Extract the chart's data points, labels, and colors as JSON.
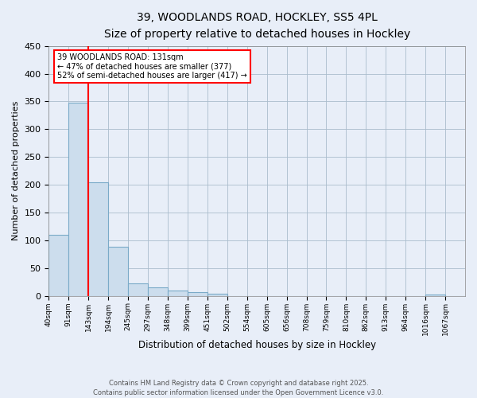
{
  "title_line1": "39, WOODLANDS ROAD, HOCKLEY, SS5 4PL",
  "title_line2": "Size of property relative to detached houses in Hockley",
  "xlabel": "Distribution of detached houses by size in Hockley",
  "ylabel": "Number of detached properties",
  "bar_color": "#ccdded",
  "bar_edge_color": "#7aaac8",
  "bin_labels": [
    "40sqm",
    "91sqm",
    "143sqm",
    "194sqm",
    "245sqm",
    "297sqm",
    "348sqm",
    "399sqm",
    "451sqm",
    "502sqm",
    "554sqm",
    "605sqm",
    "656sqm",
    "708sqm",
    "759sqm",
    "810sqm",
    "862sqm",
    "913sqm",
    "964sqm",
    "1016sqm",
    "1067sqm"
  ],
  "bar_values": [
    110,
    348,
    204,
    88,
    22,
    15,
    9,
    7,
    4,
    0,
    0,
    0,
    0,
    0,
    0,
    0,
    0,
    0,
    0,
    3,
    0
  ],
  "ylim": [
    0,
    450
  ],
  "yticks": [
    0,
    50,
    100,
    150,
    200,
    250,
    300,
    350,
    400,
    450
  ],
  "red_line_x": 2,
  "annotation_line1": "39 WOODLANDS ROAD: 131sqm",
  "annotation_line2": "← 47% of detached houses are smaller (377)",
  "annotation_line3": "52% of semi-detached houses are larger (417) →",
  "annotation_box_color": "white",
  "annotation_box_edge": "red",
  "footer_line1": "Contains HM Land Registry data © Crown copyright and database right 2025.",
  "footer_line2": "Contains public sector information licensed under the Open Government Licence v3.0.",
  "background_color": "#e8eef8",
  "grid_color": "#aabccc"
}
